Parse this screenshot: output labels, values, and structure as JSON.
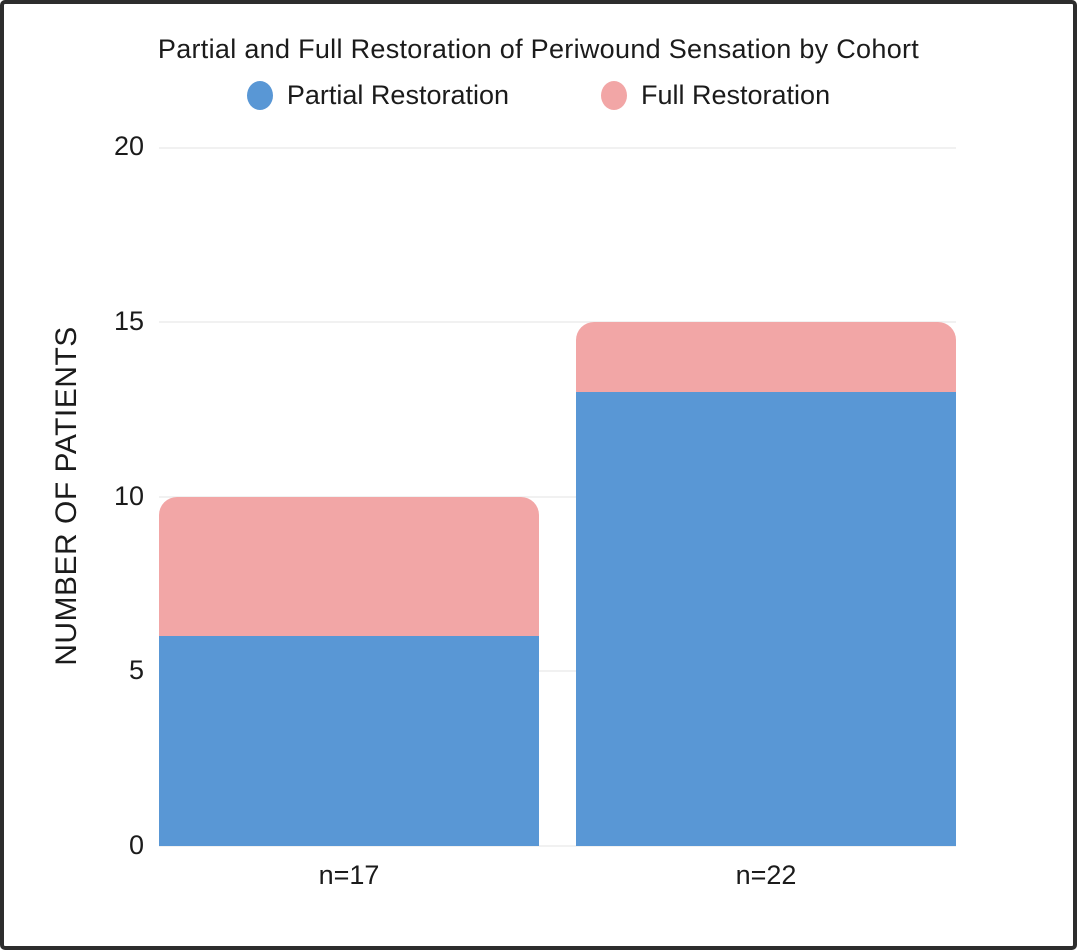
{
  "chart_data": {
    "type": "bar",
    "stacked": true,
    "title": "Partial and Full Restoration of Periwound Sensation by Cohort",
    "categories": [
      "n=17",
      "n=22"
    ],
    "series": [
      {
        "name": "Partial Restoration",
        "color": "#5997D5",
        "values": [
          6,
          13
        ]
      },
      {
        "name": "Full Restoration",
        "color": "#F2A6A6",
        "values": [
          4,
          2
        ]
      }
    ],
    "totals": [
      10,
      15
    ],
    "xlabel": "",
    "ylabel": "NUMBER OF PATIENTS",
    "yticks": [
      0,
      5,
      10,
      15,
      20
    ],
    "ylim": [
      0,
      20
    ],
    "grid": true,
    "legend_position": "top",
    "colors": {
      "partial": "#5997D5",
      "full": "#F2A6A6",
      "grid": "#f1f1f1",
      "text": "#1b1b1b",
      "background": "#ffffff",
      "frame_border": "#2d2d2d"
    }
  }
}
